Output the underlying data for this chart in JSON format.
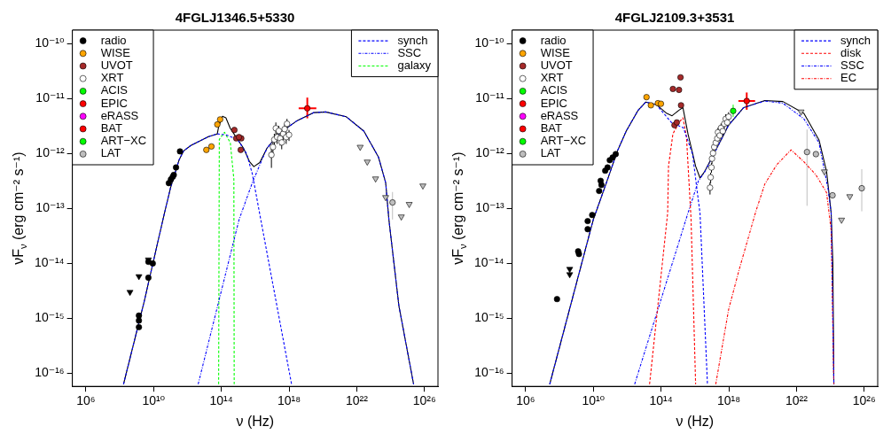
{
  "chart_data": [
    {
      "type": "scatter",
      "title": "4FGLJ1346.5+5330",
      "xlabel": "ν (Hz)",
      "ylabel": "νF$_{ν}$ (erg cm⁻² s⁻¹)",
      "log": "xy",
      "legend": "top left",
      "xlim": [
        158000.0,
        6.3e+26
      ],
      "ylim": [
        5.75e-17,
        1.78e-10
      ],
      "xticks": [
        {
          "value": 1000000.0,
          "label": "10⁶"
        },
        {
          "value": 10000000000.0,
          "label": "10¹⁰"
        },
        {
          "value": 100000000000000.0,
          "label": "10¹⁴"
        },
        {
          "value": 1e+18,
          "label": "10¹⁸"
        },
        {
          "value": 1e+22,
          "label": "10²²"
        },
        {
          "value": 1e+26,
          "label": "10²⁶"
        }
      ],
      "yticks": [
        {
          "value": 1e-16,
          "label": "10⁻¹⁶"
        },
        {
          "value": 1e-15,
          "label": "10⁻¹⁵"
        },
        {
          "value": 1e-14,
          "label": "10⁻¹⁴"
        },
        {
          "value": 1e-13,
          "label": "10⁻¹³"
        },
        {
          "value": 1e-12,
          "label": "10⁻¹²"
        },
        {
          "value": 1e-11,
          "label": "10⁻¹¹"
        },
        {
          "value": 1e-10,
          "label": "10⁻¹⁰"
        }
      ],
      "series": [
        {
          "name": "radio",
          "color": "#000000",
          "marker": "circle",
          "x": [
            1350000000.0,
            1350000000.0,
            1350000000.0,
            4900000000.0,
            4900000000.0,
            8900000000.0,
            79000000000.0,
            105000000000.0,
            135000000000.0,
            155000000000.0,
            210000000000.0,
            360000000000.0
          ],
          "values": [
            1.12e-15,
            9.1e-16,
            6.9e-16,
            5.5e-15,
            1.07e-14,
            1e-14,
            2.9e-13,
            3.4e-13,
            3.8e-13,
            4.1e-13,
            5.6e-13,
            1.1e-12
          ]
        },
        {
          "color": "#000000",
          "marker": "triangle",
          "x": [
            400000000.0,
            1350000000.0,
            4900000000.0
          ],
          "values": [
            3e-15,
            5.8e-15,
            1.17e-14
          ]
        },
        {
          "name": "WISE",
          "color": "#ffa500",
          "marker": "circle",
          "x": [
            13000000000000.0,
            26000000000000.0,
            58000000000000.0,
            85000000000000.0
          ],
          "values": [
            1.17e-12,
            1.35e-12,
            3.4e-12,
            4.2e-12
          ]
        },
        {
          "name": "UVOT",
          "color": "#a52a2a",
          "marker": "circle",
          "x": [
            590000000000000.0,
            760000000000000.0,
            1500000000000000.0,
            1100000000000000.0,
            1400000000000000.0
          ],
          "values": [
            2.7e-12,
            1.9e-12,
            1.9e-12,
            2e-12,
            1.17e-12
          ]
        },
        {
          "name": "XRT",
          "color": "#ffffff",
          "marker": "circle",
          "x": [
            9.1e+16,
            1.12e+17,
            1.35e+17,
            1.66e+17,
            2e+17,
            2.5e+17,
            3e+17,
            3.7e+17,
            4.5e+17,
            5.5e+17,
            6.8e+17,
            7.6e+17,
            1e+18
          ],
          "values": [
            9.5e-13,
            1.32e-12,
            1.8e-12,
            2.9e-12,
            2e-12,
            2.6e-12,
            1.9e-12,
            1.6e-12,
            2.3e-12,
            2.8e-12,
            2e-12,
            3.5e-12,
            2.2e-12
          ],
          "errors": [
            4e-13,
            4e-13,
            5e-13,
            8e-13,
            5e-13,
            6e-13,
            5e-13,
            4e-13,
            6e-13,
            7e-13,
            5e-13,
            8e-13,
            5e-13
          ]
        },
        {
          "name": "ACIS",
          "color": "#00ff00",
          "marker": "circle"
        },
        {
          "name": "EPIC",
          "color": "#ff0000",
          "marker": "circle"
        },
        {
          "name": "eRASS",
          "color": "#ff00ff",
          "marker": "circle"
        },
        {
          "name": "BAT",
          "color": "#ff0000",
          "marker": "circle",
          "x": [
            1.2e+19
          ],
          "values": [
            6.7e-12
          ],
          "errors": [
            [
              4.4e-12,
              1.05e-11
            ]
          ],
          "xerrors": [
            [
              3.7e+18,
              4.1e+19
            ]
          ]
        },
        {
          "name": "ART−XC",
          "color": "#00ff00",
          "marker": "circle"
        },
        {
          "name": "LAT",
          "color": "#bebebe",
          "marker": "circle",
          "x": [
            1.3e+24
          ],
          "values": [
            1.29e-13
          ],
          "errors": [
            [
              6.3e-14,
              2e-13
            ]
          ]
        },
        {
          "color": "#bebebe",
          "marker": "triangle",
          "x": [
            1.6e+22,
            4.2e+22,
            1.3e+23,
            5.1e+23,
            4.3e+24,
            1.26e+25,
            8.1e+25
          ],
          "values": [
            1.32e-12,
            7.1e-13,
            3.5e-13,
            1.6e-13,
            7.1e-14,
            1.2e-13,
            2.6e-13
          ]
        },
        {
          "type": "line",
          "name": "synch",
          "color": "#0000ff",
          "marker": "none",
          "line_style": "dashed",
          "x": [
            166000000.0,
            2690000000.0,
            35500000000.0,
            97700000000.0,
            324000000000.0,
            589000000000.0,
            1580000000000.0,
            17400000000000.0,
            57500000000000.0,
            186000000000000.0,
            912000000000000.0,
            3090000000000000.0,
            6760000000000000.0,
            1.86e+16,
            1.41e+18
          ],
          "values": [
            6.3e-17,
            1.95e-15,
            6.3e-14,
            2.34e-13,
            7.8e-13,
            1.12e-12,
            1.41e-12,
            2.04e-12,
            2.29e-12,
            2.2e-12,
            1.82e-12,
            1e-12,
            4.3e-13,
            7.9e-14,
            6.3e-17
          ]
        },
        {
          "type": "line",
          "name": "SSC",
          "color": "#0000ff",
          "marker": "none",
          "line_style": "dotted",
          "x": [
            4270000000000.0,
            1120000000000000.0,
            6760000000000000.0,
            1.86e+16,
            5.01e+16,
            2.45e+17,
            2.69e+18,
            2.95e+19,
            1.45e+20,
            2.4e+21,
            2.63e+22,
            1.91e+23,
            5.13e+23,
            7.94e+23,
            3.09e+24,
            2.29e+25
          ],
          "values": [
            6.3e-17,
            6.3e-14,
            2.95e-13,
            6.2e-13,
            1.26e-12,
            2.29e-12,
            3.9e-12,
            5.6e-12,
            5.75e-12,
            4.7e-12,
            2.57e-12,
            8.7e-13,
            2.95e-13,
            6.3e-14,
            1.7e-15,
            6.3e-17
          ]
        },
        {
          "type": "line",
          "name": "galaxy",
          "color": "#00ff00",
          "marker": "none",
          "line_style": "dashed",
          "x": [
            69200000000000.0,
            75900000000000.0,
            155000000000000.0,
            339000000000000.0,
            550000000000000.0,
            575000000000000.0
          ],
          "values": [
            6.3e-17,
            1.82e-12,
            2.45e-12,
            1.58e-12,
            3.4e-13,
            6.3e-17
          ]
        },
        {
          "type": "line",
          "color": "#000000",
          "marker": "none",
          "line_style": "solid",
          "x": [
            166000000.0,
            2690000000.0,
            35500000000.0,
            97700000000.0,
            324000000000.0,
            589000000000.0,
            1580000000000.0,
            17400000000000.0,
            57500000000000.0,
            69200000000000.0,
            117000000000000.0,
            186000000000000.0,
            339000000000000.0,
            912000000000000.0,
            2040000000000000.0,
            4570000000000000.0,
            8320000000000000.0,
            1.86e+16,
            5.01e+16,
            2.45e+17,
            2.69e+18,
            2.95e+19,
            1.45e+20,
            2.4e+21,
            2.63e+22,
            1.91e+23,
            5.13e+23,
            7.94e+23,
            3.09e+24,
            2.29e+25
          ],
          "values": [
            6.3e-17,
            1.95e-15,
            6.3e-14,
            2.34e-13,
            7.8e-13,
            1.12e-12,
            1.41e-12,
            2.04e-12,
            2.29e-12,
            3.09e-12,
            4.8e-12,
            4.5e-12,
            2.88e-12,
            1.82e-12,
            1.26e-12,
            7.2e-13,
            5.8e-13,
            6.9e-13,
            1.26e-12,
            2.29e-12,
            3.9e-12,
            5.6e-12,
            5.75e-12,
            4.7e-12,
            2.57e-12,
            8.7e-13,
            2.95e-13,
            6.3e-14,
            1.7e-15,
            6.3e-17
          ]
        }
      ]
    },
    {
      "type": "scatter",
      "title": "4FGLJ2109.3+3531",
      "xlabel": "ν (Hz)",
      "ylabel": "νF$_{ν}$ (erg cm⁻² s⁻¹)",
      "log": "xy",
      "legend": "top left",
      "xlim": [
        158000.0,
        6.3e+26
      ],
      "ylim": [
        5.75e-17,
        1.78e-10
      ],
      "xticks": [
        {
          "value": 1000000.0,
          "label": "10⁶"
        },
        {
          "value": 10000000000.0,
          "label": "10¹⁰"
        },
        {
          "value": 100000000000000.0,
          "label": "10¹⁴"
        },
        {
          "value": 1e+18,
          "label": "10¹⁸"
        },
        {
          "value": 1e+22,
          "label": "10²²"
        },
        {
          "value": 1e+26,
          "label": "10²⁶"
        }
      ],
      "yticks": [
        {
          "value": 1e-16,
          "label": "10⁻¹⁶"
        },
        {
          "value": 1e-15,
          "label": "10⁻¹⁵"
        },
        {
          "value": 1e-14,
          "label": "10⁻¹⁴"
        },
        {
          "value": 1e-13,
          "label": "10⁻¹³"
        },
        {
          "value": 1e-12,
          "label": "10⁻¹²"
        },
        {
          "value": 1e-11,
          "label": "10⁻¹¹"
        },
        {
          "value": 1e-10,
          "label": "10⁻¹⁰"
        }
      ],
      "series": [
        {
          "name": "radio",
          "color": "#000000",
          "marker": "circle",
          "x": [
            71000000.0,
            1260000000.0,
            1410000000.0,
            4600000000.0,
            4600000000.0,
            8500000000.0,
            21900000000.0,
            26900000000.0,
            30000000000.0,
            50000000000.0,
            69000000000.0,
            93000000000.0,
            138000000000.0,
            209000000000.0
          ],
          "values": [
            2.24e-15,
            1.66e-14,
            1.48e-14,
            5.9e-14,
            4.2e-14,
            7.6e-14,
            2.09e-13,
            3.2e-13,
            2.69e-13,
            4.9e-13,
            5.6e-13,
            7.6e-13,
            8.5e-13,
            9.8e-13
          ]
        },
        {
          "color": "#000000",
          "marker": "triangle",
          "x": [
            400000000.0,
            400000000.0
          ],
          "values": [
            7.9e-15,
            6.3e-15
          ]
        },
        {
          "name": "WISE",
          "color": "#ffa500",
          "marker": "circle",
          "x": [
            13800000000000.0,
            25000000000000.0,
            65000000000000.0,
            98000000000000.0
          ],
          "values": [
            1.07e-11,
            7.6e-12,
            8.3e-12,
            8.1e-12
          ]
        },
        {
          "name": "UVOT",
          "color": "#a52a2a",
          "marker": "circle",
          "x": [
            500000000000000.0,
            1150000000000000.0,
            1410000000000000.0,
            1510000000000000.0,
            620000000000000.0,
            850000000000000.0
          ],
          "values": [
            1.51e-11,
            1.45e-11,
            2.45e-11,
            7.6e-12,
            3.3e-12,
            3.7e-12
          ]
        },
        {
          "name": "XRT",
          "color": "#ffffff",
          "marker": "circle",
          "x": [
            7.8e+16,
            8.5e+16,
            9.5e+16,
            1.02e+17,
            1.17e+17,
            1.38e+17,
            1.7e+17,
            2.1e+17,
            2.3e+17,
            2.9e+17,
            3.5e+17,
            4.4e+17,
            5.4e+17,
            6.6e+17,
            8.1e+17,
            9.8e+17
          ],
          "values": [
            2.4e-13,
            3.7e-13,
            5.6e-13,
            8.1e-13,
            1.02e-12,
            1.32e-12,
            1.58e-12,
            1.9e-12,
            2.45e-12,
            2.14e-12,
            2.95e-12,
            2.57e-12,
            3.5e-12,
            4.3e-12,
            3.7e-12,
            4.7e-12
          ],
          "errors": [
            6e-14,
            8e-14,
            1.1e-13,
            1.6e-13,
            2e-13,
            2.6e-13,
            3.2e-13,
            4e-13,
            5e-13,
            4.5e-13,
            6e-13,
            5e-13,
            7e-13,
            9e-13,
            8e-13,
            1e-12
          ]
        },
        {
          "name": "ACIS",
          "color": "#00ff00",
          "marker": "circle"
        },
        {
          "name": "EPIC",
          "color": "#ff0000",
          "marker": "circle"
        },
        {
          "name": "eRASS",
          "color": "#ff00ff",
          "marker": "circle"
        },
        {
          "name": "BAT",
          "color": "#ff0000",
          "marker": "circle",
          "x": [
            1.15e+19
          ],
          "values": [
            9.1e-12
          ],
          "errors": [
            [
              6.3e-12,
              1.3e-11
            ]
          ],
          "xerrors": [
            [
              3.7e+18,
              3.6e+19
            ]
          ]
        },
        {
          "name": "ART−XC",
          "color": "#00ff00",
          "marker": "circle",
          "x": [
            1.82e+18
          ],
          "values": [
            6e-12
          ],
          "errors": [
            [
              4.7e-12,
              7.8e-12
            ]
          ]
        },
        {
          "name": "LAT",
          "color": "#bebebe",
          "marker": "circle",
          "x": [
            4.2e+22,
            1.41e+23,
            1.35e+24,
            7.2e+25
          ],
          "values": [
            1.07e-12,
            9.8e-13,
            1.74e-13,
            2.34e-13
          ],
          "errors": [
            [
              1.12e-13,
              2.75e-12
            ],
            null,
            null,
            [
              8.9e-14,
              5.2e-13
            ]
          ]
        },
        {
          "color": "#bebebe",
          "marker": "triangle",
          "x": [
            1.86e+22,
            4.5e+23,
            4.6e+24,
            1.41e+25
          ],
          "values": [
            5.8e-12,
            4.7e-13,
            6.2e-14,
            1.66e-13
          ]
        },
        {
          "type": "line",
          "name": "synch",
          "color": "#0000ff",
          "marker": "none",
          "line_style": "dashed",
          "x": [
            26300000.0,
            9770000000.0,
            74100000000.0,
            257000000000.0,
            871000000000.0,
            4470000000000.0,
            12600000000000.0,
            52500000000000.0,
            407000000000000.0,
            2090000000000000.0,
            7240000000000000.0,
            1.62e+16,
            2e+16,
            5.5e+16
          ],
          "values": [
            6.3e-17,
            6.2e-14,
            3.6e-13,
            1.1e-12,
            2.57e-12,
            6.2e-12,
            8.7e-12,
            7.8e-12,
            3.7e-12,
            2.95e-12,
            9.8e-13,
            1.35e-13,
            8.3e-14,
            6.3e-17
          ]
        },
        {
          "type": "line",
          "name": "disk",
          "color": "#ff0000",
          "marker": "none",
          "line_style": "dashed",
          "x": [
            20900000000000.0,
            245000000000000.0,
            275000000000000.0,
            500000000000000.0,
            1150000000000000.0,
            1950000000000000.0,
            3160000000000000.0,
            5900000000000000.0,
            1.1e+16
          ],
          "values": [
            6.3e-17,
            8.3e-14,
            5.9e-13,
            2.29e-12,
            3.7e-12,
            4.5e-12,
            2.04e-12,
            6.5e-14,
            6.3e-17
          ]
        },
        {
          "type": "line",
          "name": "SSC",
          "color": "#0000ff",
          "marker": "none",
          "line_style": "dotted",
          "x": [
            2750000000000.0,
            3890000000000000.0,
            1.62e+16,
            3.72e+16,
            1.29e+17,
            9.77e+17,
            7.59e+18,
            1.35e+20,
            1.58e+21,
            2.75e+22,
            2.14e+23,
            7.41e+23,
            1.12e+24,
            1.62e+24
          ],
          "values": [
            6.3e-17,
            8.3e-14,
            3.2e-13,
            4.6e-13,
            9.6e-13,
            3.3e-12,
            6.9e-12,
            9.1e-12,
            8.3e-12,
            4.3e-12,
            1.58e-12,
            2.24e-13,
            8.3e-14,
            6.3e-17
          ]
        },
        {
          "type": "line",
          "name": "EC",
          "color": "#ff0000",
          "marker": "none",
          "line_style": "dotted",
          "x": [
            1.7e+17,
            9.8e+17,
            4.2e+18,
            4e+19,
            1.35e+20,
            6.9e+20,
            4.8e+21,
            2.75e+22,
            1.41e+23,
            6e+23,
            1.12e+24,
            1.62e+24
          ],
          "values": [
            6.3e-17,
            1.45e-15,
            7.9e-15,
            8.9e-14,
            2.8e-13,
            6.3e-13,
            1.17e-12,
            7.1e-13,
            4.1e-13,
            1.95e-13,
            4e-14,
            6.3e-17
          ]
        },
        {
          "type": "line",
          "color": "#000000",
          "marker": "none",
          "line_style": "solid",
          "x": [
            26300000.0,
            9770000000.0,
            74100000000.0,
            257000000000.0,
            871000000000.0,
            4470000000000.0,
            12600000000000.0,
            52500000000000.0,
            219000000000000.0,
            447000000000000.0,
            1150000000000000.0,
            1950000000000000.0,
            3890000000000000.0,
            1.1e+16,
            2e+16,
            3.72e+16,
            1.29e+17,
            9.77e+17,
            7.59e+18,
            1.35e+20,
            1.58e+21,
            2.75e+22,
            2.14e+23,
            6.03e+23,
            1.12e+24,
            1.41e+24,
            1.62e+24
          ],
          "values": [
            6.3e-17,
            6.2e-14,
            3.6e-13,
            1.1e-12,
            2.57e-12,
            6.2e-12,
            8.7e-12,
            7.8e-12,
            5.4e-12,
            4.9e-12,
            6.2e-12,
            6.9e-12,
            2.29e-12,
            5.9e-13,
            3.6e-13,
            4.7e-13,
            9.8e-13,
            3.3e-12,
            6.9e-12,
            9.3e-12,
            8.9e-12,
            5.4e-12,
            1.78e-12,
            4.7e-13,
            8.3e-14,
            1e-14,
            6.3e-17
          ]
        }
      ]
    }
  ]
}
